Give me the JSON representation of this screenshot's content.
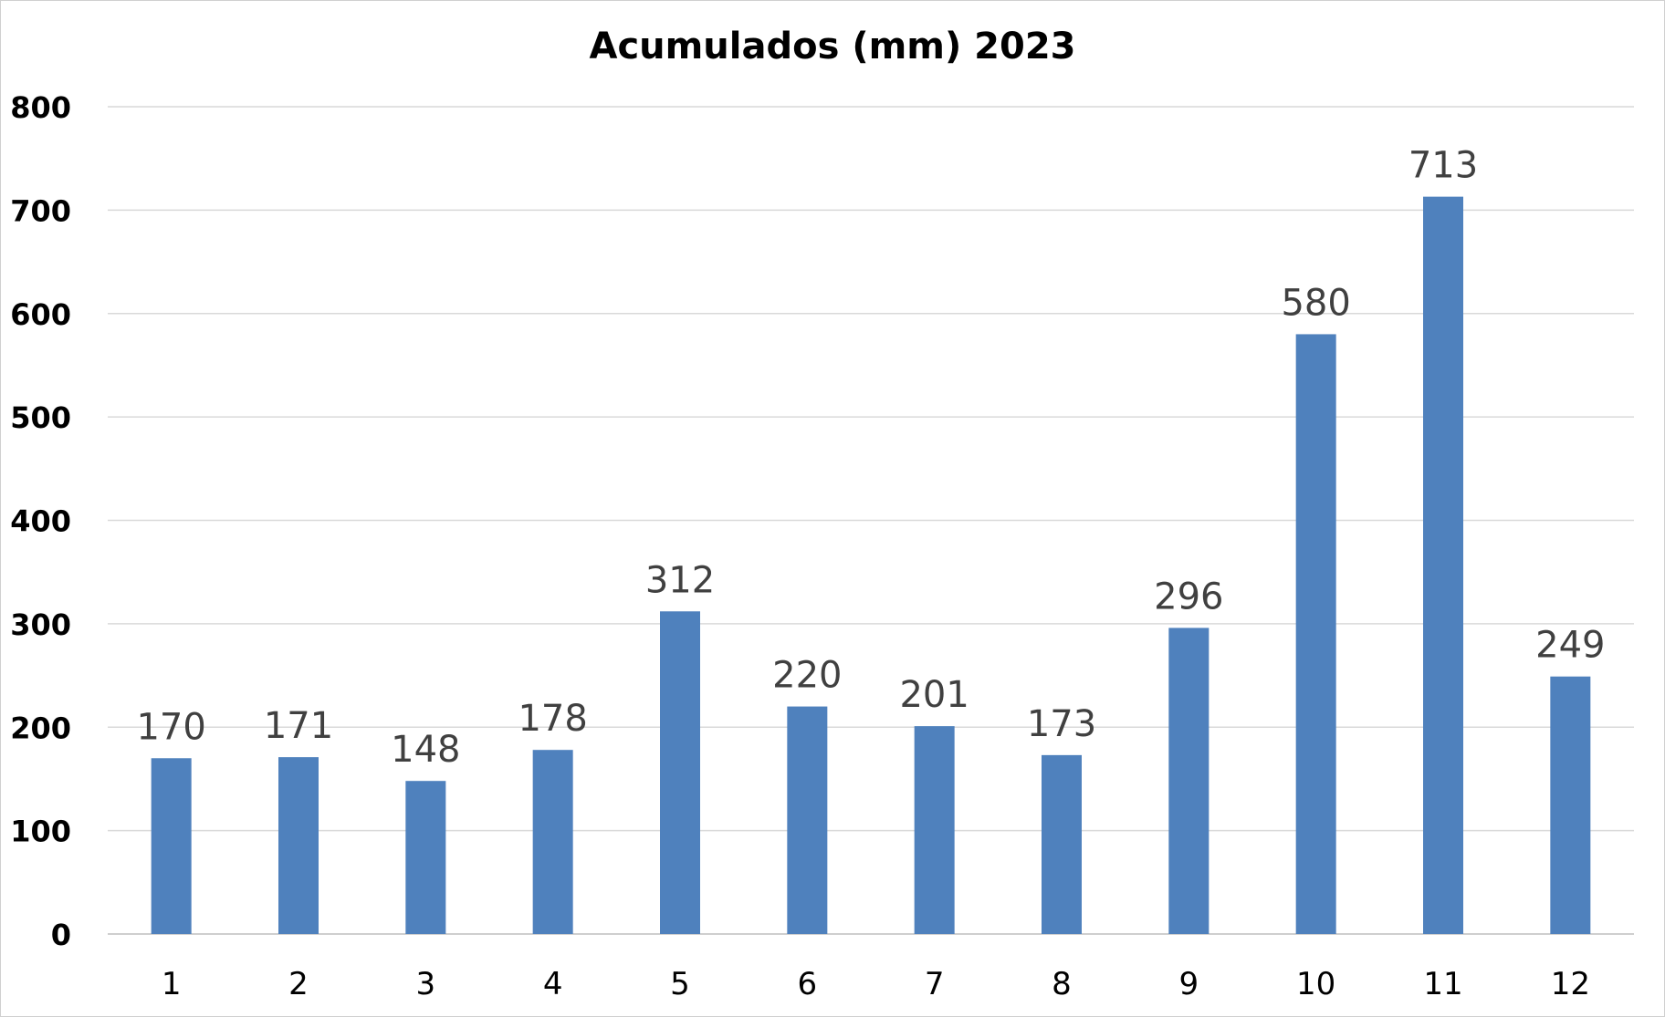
{
  "chart_data": {
    "type": "bar",
    "title": "Acumulados (mm) 2023",
    "xlabel": "",
    "ylabel": "",
    "categories": [
      "1",
      "2",
      "3",
      "4",
      "5",
      "6",
      "7",
      "8",
      "9",
      "10",
      "11",
      "12"
    ],
    "values": [
      170,
      171,
      148,
      178,
      312,
      220,
      201,
      173,
      296,
      580,
      713,
      249
    ],
    "data_labels": [
      "170",
      "171",
      "148",
      "178",
      "312",
      "220",
      "201",
      "173",
      "296",
      "580",
      "713",
      "249"
    ],
    "ylim": [
      0,
      800
    ],
    "yticks": [
      0,
      100,
      200,
      300,
      400,
      500,
      600,
      700,
      800
    ],
    "ytick_labels": [
      "0",
      "100",
      "200",
      "300",
      "400",
      "500",
      "600",
      "700",
      "800"
    ],
    "grid": true,
    "legend": "none",
    "bar_color": "#4f81bd"
  }
}
